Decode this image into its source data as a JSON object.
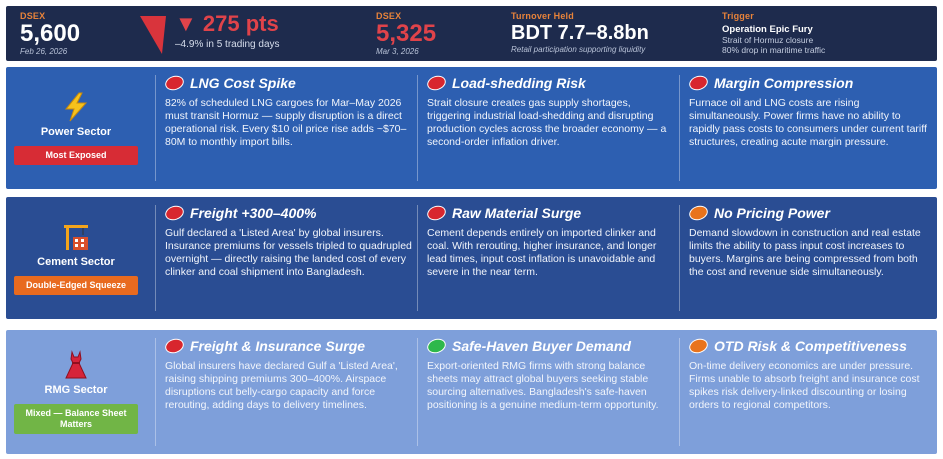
{
  "top_bar": {
    "dsex_before": {
      "label": "DSEX",
      "value": "5,600",
      "date": "Feb 26, 2026"
    },
    "drop": {
      "points": "▼ 275 pts",
      "detail": "–4.9%  in 5 trading days"
    },
    "dsex_after": {
      "label": "DSEX",
      "value": "5,325",
      "date": "Mar 3, 2026"
    },
    "turnover": {
      "label": "Turnover Held",
      "value": "BDT 7.7–8.8bn",
      "note": "Retail participation supporting liquidity"
    },
    "trigger": {
      "label": "Trigger",
      "title": "Operation Epic Fury",
      "line1": "Strait of Hormuz closure",
      "line2": "80% drop in maritime traffic"
    }
  },
  "sectors": [
    {
      "name": "Power Sector",
      "icon": "lightning-icon",
      "badge": "Most Exposed",
      "badge_color": "#d72c35",
      "points": [
        {
          "title": "LNG Cost Spike",
          "status": "red",
          "body": "82% of scheduled LNG cargoes for Mar–May 2026 must transit Hormuz — supply disruption is a direct operational risk. Every $10 oil price rise adds ~$70–80M to monthly import bills."
        },
        {
          "title": "Load-shedding Risk",
          "status": "red",
          "body": "Strait closure creates gas supply shortages, triggering industrial load-shedding and disrupting production cycles across the broader economy — a second-order inflation driver."
        },
        {
          "title": "Margin Compression",
          "status": "red",
          "body": "Furnace oil and LNG costs are rising simultaneously. Power firms have no ability to rapidly pass costs to consumers under current tariff structures, creating acute margin pressure."
        }
      ]
    },
    {
      "name": "Cement Sector",
      "icon": "crane-icon",
      "badge": "Double-Edged Squeeze",
      "badge_color": "#e86a1f",
      "points": [
        {
          "title": "Freight +300–400%",
          "status": "red",
          "body": "Gulf declared a 'Listed Area' by global insurers. Insurance premiums for vessels tripled to quadrupled overnight — directly raising the landed cost of every clinker and coal shipment into Bangladesh."
        },
        {
          "title": "Raw Material Surge",
          "status": "red",
          "body": "Cement depends entirely on imported clinker and coal. With rerouting, higher insurance, and longer lead times, input cost inflation is unavoidable and severe in the near term."
        },
        {
          "title": "No Pricing Power",
          "status": "orange",
          "body": "Demand slowdown in construction and real estate limits the ability to pass input cost increases to buyers. Margins are being compressed from both the cost and revenue side simultaneously."
        }
      ]
    },
    {
      "name": "RMG Sector",
      "icon": "dress-icon",
      "badge": "Mixed — Balance Sheet Matters",
      "badge_color": "#71b546",
      "points": [
        {
          "title": "Freight & Insurance Surge",
          "status": "red",
          "body": "Global insurers have declared Gulf a 'Listed Area', raising shipping premiums 300–400%. Airspace disruptions cut belly-cargo capacity and force rerouting, adding days to delivery timelines."
        },
        {
          "title": "Safe-Haven Buyer Demand",
          "status": "green",
          "body": "Export-oriented RMG firms with strong balance sheets may attract global buyers seeking stable sourcing alternatives. Bangladesh's safe-haven positioning is a genuine medium-term opportunity."
        },
        {
          "title": "OTD Risk & Competitiveness",
          "status": "orange",
          "body": "On-time delivery economics are under pressure. Firms unable to absorb freight and insurance cost spikes risk delivery-linked discounting or losing orders to regional competitors."
        }
      ]
    }
  ]
}
